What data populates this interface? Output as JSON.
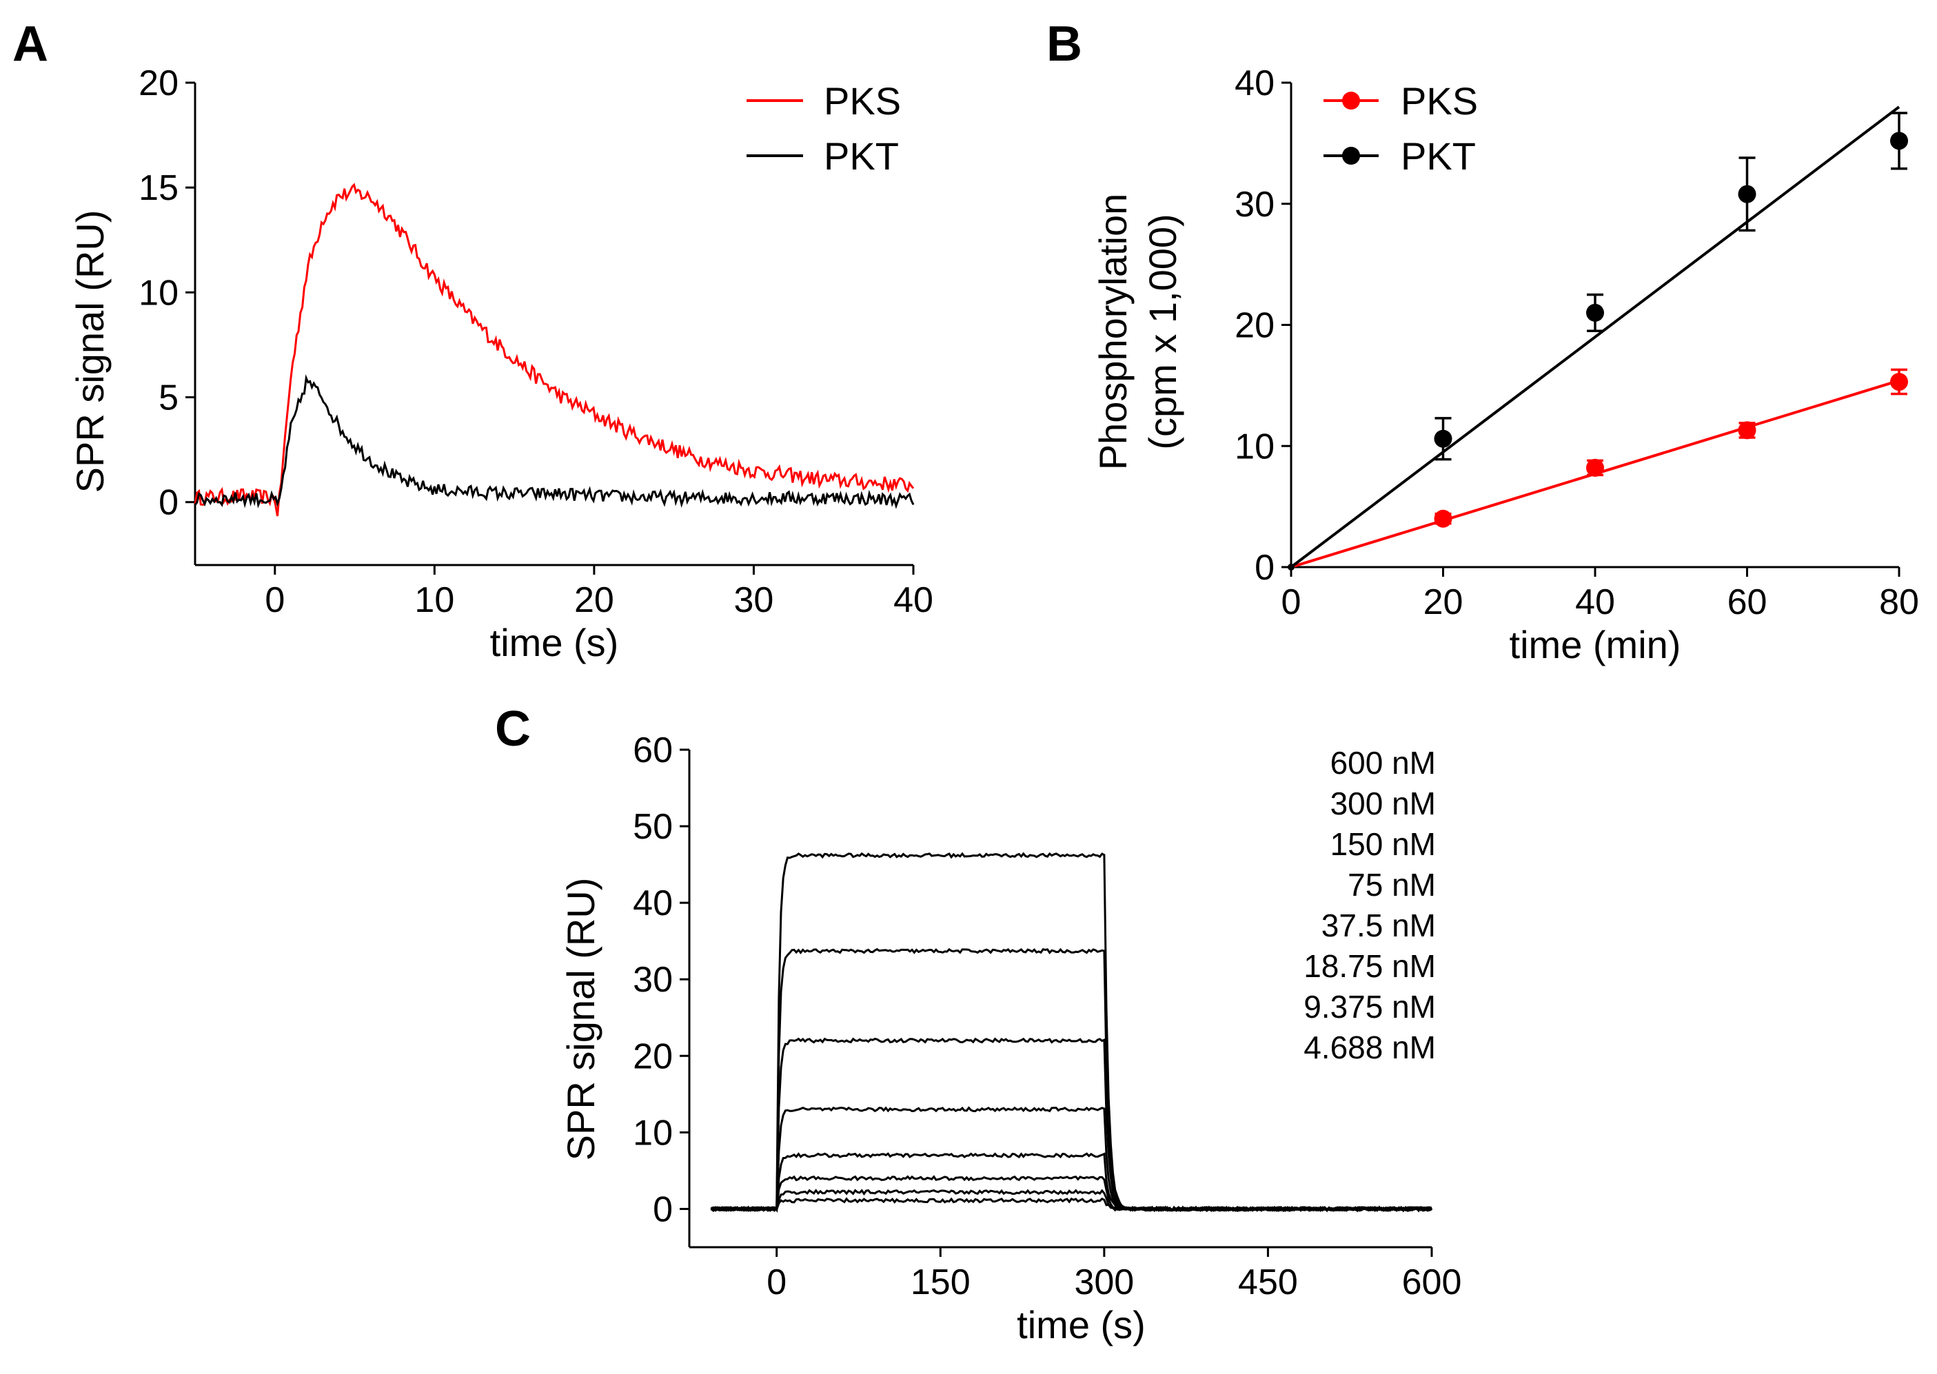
{
  "chart_data": [
    {
      "panel": "A",
      "type": "line",
      "xlabel": "time (s)",
      "ylabel": "SPR signal (RU)",
      "xlim": [
        -5,
        40
      ],
      "ylim": [
        -3,
        20
      ],
      "xticks": [
        0,
        10,
        20,
        30,
        40
      ],
      "yticks": [
        0,
        5,
        10,
        15,
        20
      ],
      "legend": "top-right",
      "series": [
        {
          "name": "PKS",
          "color": "#ff0000",
          "x": [
            -5,
            -2,
            0,
            0.2,
            1,
            2,
            3,
            4,
            5,
            6,
            7,
            8,
            9,
            10,
            12,
            14,
            16,
            18,
            20,
            22,
            24,
            26,
            28,
            30,
            32,
            34,
            36,
            38,
            40
          ],
          "y": [
            0.2,
            0.3,
            0.2,
            -0.6,
            6.0,
            11.0,
            13.5,
            14.6,
            14.8,
            14.5,
            13.8,
            12.8,
            11.7,
            10.7,
            9.0,
            7.5,
            6.2,
            5.0,
            4.2,
            3.4,
            2.8,
            2.2,
            1.8,
            1.5,
            1.3,
            1.1,
            1.0,
            0.9,
            0.8
          ]
        },
        {
          "name": "PKT",
          "color": "#000000",
          "x": [
            -5,
            -2,
            0,
            0.2,
            1,
            2,
            3,
            4,
            5,
            6,
            7,
            8,
            10,
            12,
            15,
            18,
            20,
            25,
            30,
            35,
            40
          ],
          "y": [
            0.1,
            0.2,
            0.1,
            -0.3,
            3.5,
            5.8,
            5.0,
            3.6,
            2.7,
            2.0,
            1.5,
            1.0,
            0.6,
            0.5,
            0.4,
            0.4,
            0.3,
            0.2,
            0.2,
            0.2,
            0.1
          ]
        }
      ]
    },
    {
      "panel": "B",
      "type": "scatter",
      "xlabel": "time (min)",
      "ylabel": "Phosphorylation (cpm x 1,000)",
      "ylabel_lines": [
        "Phosphorylation",
        "(cpm x 1,000)"
      ],
      "xlim": [
        0,
        80
      ],
      "ylim": [
        0,
        40
      ],
      "xticks": [
        0,
        20,
        40,
        60,
        80
      ],
      "yticks": [
        0,
        10,
        20,
        30,
        40
      ],
      "legend": "top-left",
      "series": [
        {
          "name": "PKS",
          "color": "#ff0000",
          "x": [
            20,
            40,
            60,
            80
          ],
          "y": [
            4.0,
            8.2,
            11.3,
            15.3
          ],
          "error": [
            0.4,
            0.6,
            0.6,
            1.0
          ],
          "fit": [
            [
              0,
              0
            ],
            [
              80,
              15.4
            ]
          ]
        },
        {
          "name": "PKT",
          "color": "#000000",
          "x": [
            20,
            40,
            60,
            80
          ],
          "y": [
            10.6,
            21.0,
            30.8,
            35.2
          ],
          "error": [
            1.7,
            1.5,
            3.0,
            2.3
          ],
          "fit": [
            [
              0,
              0
            ],
            [
              80,
              38.0
            ]
          ]
        }
      ]
    },
    {
      "panel": "C",
      "type": "line",
      "xlabel": "time (s)",
      "ylabel": "SPR signal (RU)",
      "xlim": [
        -80,
        600
      ],
      "ylim": [
        -5,
        60
      ],
      "xticks": [
        0,
        150,
        300,
        450,
        600
      ],
      "yticks": [
        0,
        10,
        20,
        30,
        40,
        50,
        60
      ],
      "labels_position": "top-right",
      "series": [
        {
          "name": "600 nM",
          "plateau": 46.2
        },
        {
          "name": "300 nM",
          "plateau": 33.7
        },
        {
          "name": "150 nM",
          "plateau": 22.0
        },
        {
          "name": "75 nM",
          "plateau": 13.0
        },
        {
          "name": "37.5 nM",
          "plateau": 7.0
        },
        {
          "name": "18.75 nM",
          "plateau": 4.0
        },
        {
          "name": "9.375 nM",
          "plateau": 2.2
        },
        {
          "name": "4.688 nM",
          "plateau": 1.1
        }
      ],
      "association_start": 0,
      "dissociation_start": 300
    }
  ]
}
